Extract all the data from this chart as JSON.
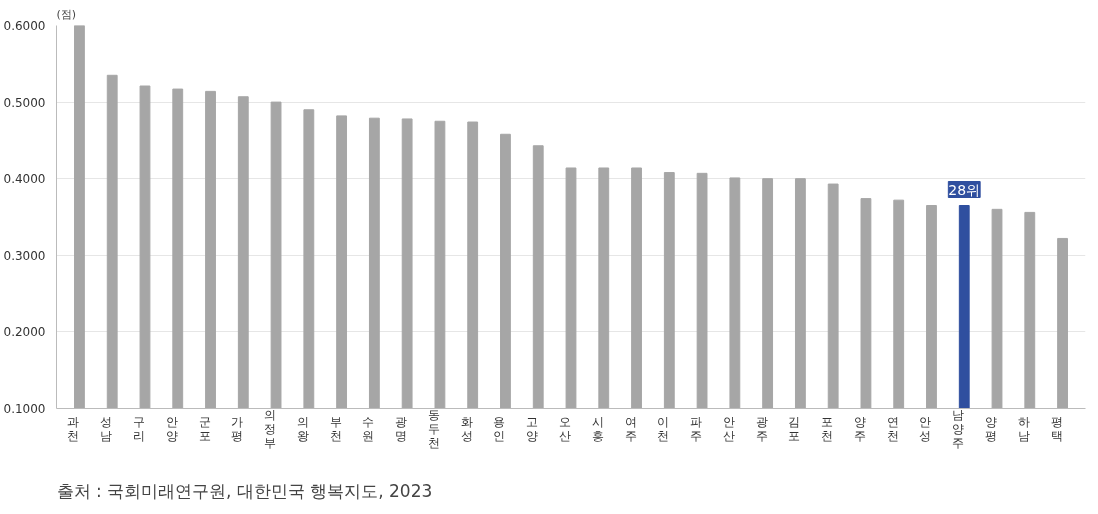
{
  "chart_data": {
    "type": "bar",
    "ylabel": "(점)",
    "categories": [
      "과천",
      "성남",
      "구리",
      "안양",
      "군포",
      "가평",
      "의정부",
      "의왕",
      "부천",
      "수원",
      "광명",
      "동두천",
      "화성",
      "용인",
      "고양",
      "오산",
      "시흥",
      "여주",
      "이천",
      "파주",
      "안산",
      "광주",
      "김포",
      "포천",
      "양주",
      "연천",
      "안성",
      "남양주",
      "양평",
      "하남",
      "평택"
    ],
    "values": [
      0.6,
      0.535,
      0.521,
      0.517,
      0.514,
      0.507,
      0.5,
      0.49,
      0.482,
      0.479,
      0.478,
      0.475,
      0.474,
      0.458,
      0.443,
      0.414,
      0.414,
      0.414,
      0.408,
      0.407,
      0.401,
      0.4,
      0.4,
      0.393,
      0.374,
      0.372,
      0.365,
      0.365,
      0.36,
      0.356,
      0.322
    ],
    "colors": [
      "#a6a6a6",
      "#a6a6a6",
      "#a6a6a6",
      "#a6a6a6",
      "#a6a6a6",
      "#a6a6a6",
      "#a6a6a6",
      "#a6a6a6",
      "#a6a6a6",
      "#a6a6a6",
      "#a6a6a6",
      "#a6a6a6",
      "#a6a6a6",
      "#a6a6a6",
      "#a6a6a6",
      "#a6a6a6",
      "#a6a6a6",
      "#a6a6a6",
      "#a6a6a6",
      "#a6a6a6",
      "#a6a6a6",
      "#a6a6a6",
      "#a6a6a6",
      "#a6a6a6",
      "#a6a6a6",
      "#a6a6a6",
      "#a6a6a6",
      "#2f4f9f",
      "#a6a6a6",
      "#a6a6a6",
      "#a6a6a6"
    ],
    "ylim": [
      0.1,
      0.6
    ],
    "yticks": [
      {
        "value": 0.1,
        "label": "0.1000"
      },
      {
        "value": 0.2,
        "label": "0.2000"
      },
      {
        "value": 0.3,
        "label": "0.3000"
      },
      {
        "value": 0.4,
        "label": "0.4000"
      },
      {
        "value": 0.5,
        "label": "0.5000"
      },
      {
        "value": 0.6,
        "label": "0.6000"
      }
    ],
    "grid": "y",
    "annotations": [
      {
        "text": "28위",
        "x": "남양주",
        "y": 0.365
      },
      "출처 : 국회미래연구원, 대한민국 행복지도, 2023"
    ]
  }
}
